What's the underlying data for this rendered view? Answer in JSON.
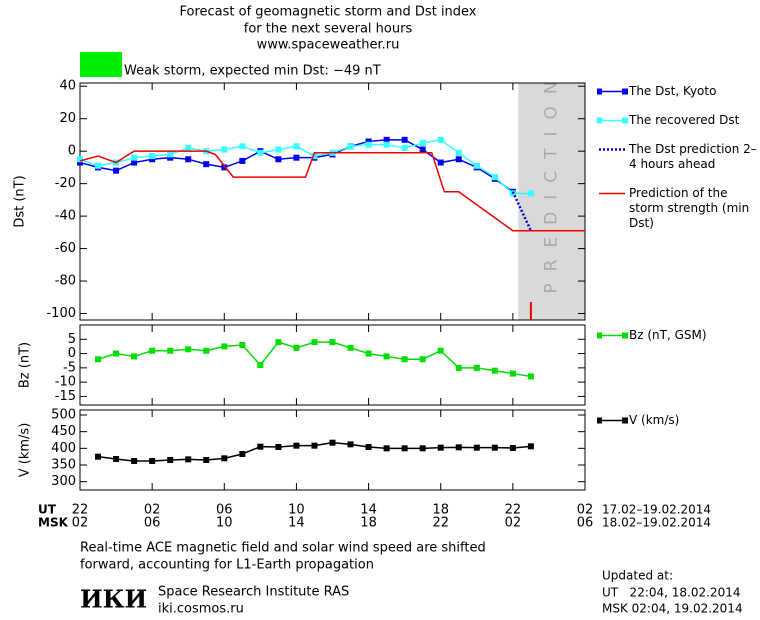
{
  "header": {
    "title": [
      "Forecast of geomagnetic storm and Dst index",
      "for the next several hours",
      "www.spaceweather.ru"
    ],
    "storm_level": {
      "label": "Weak storm, expected min Dst: −49 nT",
      "color": "#00ee00"
    }
  },
  "chart_data": [
    {
      "type": "line",
      "ylabel": "Dst (nT)",
      "xlim": [
        0,
        28
      ],
      "ylim": [
        -104,
        42
      ],
      "yticks": [
        40,
        20,
        0,
        -20,
        -40,
        -60,
        -80,
        -100
      ],
      "prediction_band": {
        "label": "PREDICTION",
        "x": [
          24.3,
          28
        ],
        "color": "#d9d9d9"
      },
      "prediction_marker": {
        "x": 25,
        "color": "#ee0000"
      },
      "series": [
        {
          "name": "The Dst, Kyoto",
          "color": "#0000ee",
          "style": "solid",
          "marker": "square",
          "x": [
            0,
            1,
            2,
            3,
            4,
            5,
            6,
            7,
            8,
            9,
            10,
            11,
            12,
            13,
            14,
            15,
            16,
            17,
            18,
            19,
            20,
            21,
            22,
            23,
            24
          ],
          "values": [
            -7,
            -10,
            -12,
            -7,
            -5,
            -4,
            -5,
            -8,
            -10,
            -6,
            0,
            -5,
            -4,
            -4,
            -2,
            3,
            6,
            7,
            7,
            1,
            -7,
            -5,
            -10,
            -17,
            -25
          ]
        },
        {
          "name": "The recovered Dst",
          "color": "#33ffff",
          "style": "solid",
          "marker": "square",
          "x": [
            0,
            1,
            2,
            3,
            4,
            5,
            6,
            7,
            8,
            9,
            10,
            11,
            12,
            13,
            14,
            15,
            16,
            17,
            18,
            19,
            20,
            21,
            22,
            23,
            24,
            25
          ],
          "values": [
            -5,
            -9,
            -7,
            -4,
            -3,
            -2,
            2,
            0,
            1,
            3,
            -1,
            1,
            3,
            -3,
            -1,
            3,
            4,
            4,
            2,
            5,
            7,
            -1,
            -9,
            -16,
            -26,
            -26
          ]
        },
        {
          "name": "The Dst prediction 2–4 hours ahead",
          "color": "#0000cc",
          "style": "dotted",
          "marker": null,
          "x": [
            24,
            25
          ],
          "values": [
            -25,
            -49
          ]
        },
        {
          "name": "Prediction of the storm strength (min Dst)",
          "color": "#ee0000",
          "style": "solid",
          "marker": null,
          "x": [
            0,
            1,
            2,
            3,
            7,
            7.5,
            8.5,
            12.5,
            13,
            19.5,
            20.2,
            21,
            24,
            28
          ],
          "values": [
            -6,
            -3,
            -7,
            0,
            0,
            -2,
            -16,
            -16,
            -1,
            -1,
            -25,
            -25,
            -49,
            -49
          ]
        }
      ]
    },
    {
      "type": "line",
      "ylabel": "Bz (nT)",
      "xlim": [
        0,
        28
      ],
      "ylim": [
        -18,
        10
      ],
      "yticks": [
        5,
        0,
        -5,
        -10,
        -15
      ],
      "series": [
        {
          "name": "Bz (nT, GSM)",
          "color": "#00dd00",
          "style": "solid",
          "marker": "square",
          "x": [
            1,
            2,
            3,
            4,
            5,
            6,
            7,
            8,
            9,
            10,
            11,
            12,
            13,
            14,
            15,
            16,
            17,
            18,
            19,
            20,
            21,
            22,
            23,
            24,
            25
          ],
          "values": [
            -2,
            0,
            -1,
            1,
            1,
            1.5,
            1,
            2.5,
            3,
            -4,
            4,
            2,
            4,
            4,
            2,
            0,
            -1,
            -2,
            -2,
            1,
            -5,
            -5,
            -6,
            -7,
            -8
          ]
        }
      ]
    },
    {
      "type": "line",
      "ylabel": "V (km/s)",
      "xlim": [
        0,
        28
      ],
      "ylim": [
        275,
        515
      ],
      "yticks": [
        500,
        450,
        400,
        350,
        300
      ],
      "series": [
        {
          "name": "V (km/s)",
          "color": "#000000",
          "style": "solid",
          "marker": "square",
          "x": [
            1,
            2,
            3,
            4,
            5,
            6,
            7,
            8,
            9,
            10,
            11,
            12,
            13,
            14,
            15,
            16,
            17,
            18,
            19,
            20,
            21,
            22,
            23,
            24,
            25
          ],
          "values": [
            375,
            368,
            362,
            362,
            365,
            367,
            365,
            370,
            383,
            405,
            404,
            408,
            408,
            417,
            412,
            404,
            400,
            400,
            400,
            402,
            403,
            402,
            402,
            401,
            406
          ]
        }
      ]
    }
  ],
  "time_axis": {
    "rows": [
      {
        "name": "UT",
        "dates": "17.02–19.02.2014",
        "ticks": [
          {
            "value": 0,
            "label": "22"
          },
          {
            "value": 4,
            "label": "02"
          },
          {
            "value": 8,
            "label": "06"
          },
          {
            "value": 12,
            "label": "10"
          },
          {
            "value": 16,
            "label": "14"
          },
          {
            "value": 20,
            "label": "18"
          },
          {
            "value": 24,
            "label": "22"
          },
          {
            "value": 28,
            "label": "02"
          }
        ]
      },
      {
        "name": "MSK",
        "dates": "18.02–19.02.2014",
        "ticks": [
          {
            "value": 0,
            "label": "02"
          },
          {
            "value": 4,
            "label": "06"
          },
          {
            "value": 8,
            "label": "10"
          },
          {
            "value": 12,
            "label": "14"
          },
          {
            "value": 16,
            "label": "18"
          },
          {
            "value": 20,
            "label": "22"
          },
          {
            "value": 24,
            "label": "02"
          },
          {
            "value": 28,
            "label": "06"
          }
        ]
      }
    ]
  },
  "footer": {
    "note": [
      "Real-time ACE magnetic field and solar wind speed are shifted",
      "forward, accounting for L1-Earth propagation"
    ],
    "logo": "ИКИ",
    "institute": "Space Research Institute RAS",
    "site": "iki.cosmos.ru",
    "updated": [
      "Updated at:",
      "UT   22:04, 18.02.2014",
      "MSK 02:04, 19.02.2014"
    ]
  }
}
